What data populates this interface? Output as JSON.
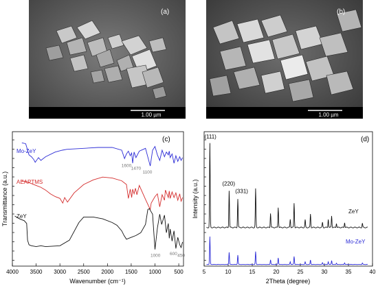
{
  "panels": [
    {
      "id": "a",
      "label": "(a)",
      "scale_bar": "1.00 µm"
    },
    {
      "id": "b",
      "label": "(b)",
      "scale_bar": "1.00 µm"
    }
  ],
  "chart_data": [
    {
      "type": "line",
      "panel_label": "(c)",
      "xlabel": "Wavenumber (cm⁻¹)",
      "ylabel": "Transmittance (a.u.)",
      "xlim": [
        4000,
        400
      ],
      "xticks": [
        4000,
        3500,
        3000,
        2500,
        2000,
        1500,
        1000,
        500
      ],
      "grid": false,
      "series": [
        {
          "name": "Mo-ZeY",
          "color": "#2b2bd6",
          "x": [
            3800,
            3720,
            3650,
            3600,
            3550,
            3520,
            3450,
            3400,
            3300,
            3100,
            2950,
            2850,
            2500,
            2200,
            1900,
            1700,
            1640,
            1600,
            1560,
            1520,
            1490,
            1470,
            1440,
            1400,
            1330,
            1200,
            1100,
            1050,
            1000,
            950,
            900,
            850,
            800,
            760,
            720,
            700,
            680,
            640,
            600,
            560,
            520,
            480,
            450,
            420
          ],
          "y": [
            11.8,
            11.7,
            10.5,
            10.3,
            10.0,
            9.7,
            10.2,
            9.9,
            10.3,
            10.8,
            11.0,
            11.1,
            11.2,
            11.3,
            11.3,
            11.0,
            10.1,
            10.6,
            10.9,
            10.4,
            10.7,
            9.6,
            10.8,
            10.2,
            10.9,
            11.2,
            9.3,
            11.0,
            11.4,
            10.5,
            9.9,
            11.0,
            10.3,
            10.8,
            10.5,
            10.9,
            10.2,
            10.6,
            9.6,
            10.4,
            9.8,
            10.3,
            9.9,
            10.2
          ]
        },
        {
          "name": "AEAPTMS",
          "color": "#d42b2b",
          "x": [
            3800,
            3700,
            3600,
            3500,
            3400,
            3300,
            3200,
            3100,
            3000,
            2940,
            2900,
            2840,
            2700,
            2500,
            2300,
            2100,
            1900,
            1700,
            1600,
            1560,
            1520,
            1490,
            1470,
            1440,
            1410,
            1380,
            1330,
            1200,
            1100,
            1080,
            1000,
            950,
            900,
            850,
            800,
            780,
            720,
            700,
            680,
            640,
            600,
            560,
            520,
            480,
            450,
            420
          ],
          "y": [
            7.7,
            7.6,
            7.4,
            7.2,
            7.0,
            6.7,
            6.3,
            6.0,
            5.8,
            5.3,
            5.9,
            5.4,
            6.4,
            7.3,
            7.8,
            8.1,
            8.0,
            7.7,
            7.3,
            5.8,
            6.8,
            5.9,
            6.8,
            6.3,
            6.9,
            6.2,
            7.2,
            5.7,
            4.6,
            5.3,
            6.0,
            6.3,
            4.9,
            6.2,
            5.6,
            6.7,
            5.9,
            6.6,
            5.8,
            6.5,
            5.9,
            6.4,
            5.6,
            6.3,
            5.5,
            5.9
          ]
        },
        {
          "name": "ZeY",
          "color": "#111111",
          "x": [
            3950,
            3850,
            3750,
            3700,
            3680,
            3650,
            3600,
            3500,
            3400,
            3300,
            3000,
            2800,
            2600,
            2500,
            2300,
            2100,
            1900,
            1800,
            1700,
            1650,
            1600,
            1500,
            1400,
            1300,
            1200,
            1150,
            1120,
            1050,
            1000,
            950,
            900,
            860,
            800,
            760,
            720,
            700,
            680,
            640,
            600,
            560,
            520,
            480,
            450,
            420
          ],
          "y": [
            3.9,
            3.6,
            3.4,
            3.1,
            1.3,
            0.8,
            0.7,
            0.6,
            0.7,
            0.6,
            0.7,
            1.3,
            3.2,
            3.8,
            3.8,
            3.6,
            3.2,
            2.9,
            2.3,
            1.8,
            1.4,
            1.6,
            1.8,
            2.1,
            3.0,
            4.6,
            4.7,
            4.1,
            0.3,
            2.6,
            4.1,
            3.0,
            4.0,
            2.1,
            3.1,
            1.5,
            2.5,
            1.2,
            2.3,
            0.4,
            1.6,
            0.8,
            0.5,
            1.1
          ]
        }
      ],
      "annotations": [
        {
          "text": "1600",
          "x": 1600,
          "y": 9.2
        },
        {
          "text": "1470",
          "x": 1400,
          "y": 8.9
        },
        {
          "text": "1100",
          "x": 1160,
          "y": 8.5
        },
        {
          "text": "1000",
          "x": 990,
          "y": -0.5
        },
        {
          "text": "600",
          "x": 610,
          "y": -0.3
        },
        {
          "text": "450",
          "x": 450,
          "y": -0.5
        }
      ]
    },
    {
      "type": "line",
      "panel_label": "(d)",
      "xlabel": "2Theta (degree)",
      "ylabel": "Intensity (a.u.)",
      "xlim": [
        5,
        40
      ],
      "xticks": [
        5,
        10,
        15,
        20,
        25,
        30,
        35,
        40
      ],
      "grid": false,
      "peaks": [
        {
          "pos": 6.2,
          "h": 1.0
        },
        {
          "pos": 10.2,
          "h": 0.44
        },
        {
          "pos": 12.0,
          "h": 0.34
        },
        {
          "pos": 15.7,
          "h": 0.46
        },
        {
          "pos": 18.8,
          "h": 0.17
        },
        {
          "pos": 20.4,
          "h": 0.24
        },
        {
          "pos": 22.9,
          "h": 0.1
        },
        {
          "pos": 23.7,
          "h": 0.29
        },
        {
          "pos": 26.0,
          "h": 0.09
        },
        {
          "pos": 27.1,
          "h": 0.16
        },
        {
          "pos": 29.6,
          "h": 0.06
        },
        {
          "pos": 30.8,
          "h": 0.1
        },
        {
          "pos": 31.5,
          "h": 0.14
        },
        {
          "pos": 32.5,
          "h": 0.05
        },
        {
          "pos": 34.2,
          "h": 0.06
        },
        {
          "pos": 37.9,
          "h": 0.05
        }
      ],
      "series": [
        {
          "name": "ZeY",
          "color": "#111111",
          "offset": 0.46,
          "scale": 1.0
        },
        {
          "name": "Mo-ZeY",
          "color": "#2b2bd6",
          "offset": 0.02,
          "scale": 0.33
        }
      ],
      "annotations": [
        {
          "text": "(111)",
          "x": 6.3,
          "y": 1.52
        },
        {
          "text": "(220)",
          "x": 10.1,
          "y": 0.96
        },
        {
          "text": "(331)",
          "x": 12.8,
          "y": 0.87
        }
      ]
    }
  ]
}
